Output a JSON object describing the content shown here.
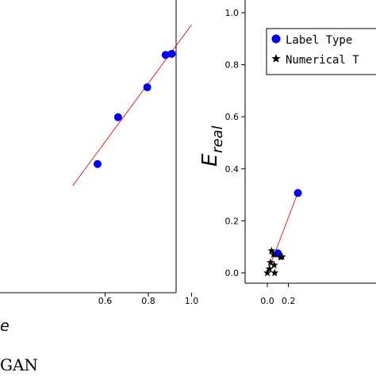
{
  "chart_data": [
    {
      "type": "scatter",
      "xlim": [
        0.3,
        1.0
      ],
      "ylim": [
        0.0,
        1.0
      ],
      "x_ticks": [
        "0.6",
        "0.8",
        "1.0"
      ],
      "x_tick_values": [
        0.6,
        0.8,
        1.0
      ],
      "xlabel_visible": "e",
      "series": [
        {
          "marker": "circle",
          "color": "#0000ee",
          "points": [
            {
              "x": 0.565,
              "y": 0.473
            },
            {
              "x": 0.66,
              "y": 0.645
            },
            {
              "x": 0.795,
              "y": 0.755
            },
            {
              "x": 0.88,
              "y": 0.874
            },
            {
              "x": 0.908,
              "y": 0.878
            }
          ]
        }
      ],
      "fit_line": {
        "color": "#d62728",
        "points": [
          {
            "x": 0.45,
            "y": 0.393
          },
          {
            "x": 1.0,
            "y": 0.985
          }
        ]
      },
      "caption_fragment": "GAN"
    },
    {
      "type": "scatter",
      "xlim": [
        -0.075,
        0.42
      ],
      "ylim": [
        -0.03,
        1.06
      ],
      "x_ticks": [
        "0.0",
        "0.2"
      ],
      "x_tick_values": [
        0.0,
        0.2
      ],
      "y_ticks": [
        "0.0",
        "0.2",
        "0.4",
        "0.6",
        "0.8",
        "1.0"
      ],
      "y_tick_values": [
        0.0,
        0.2,
        0.4,
        0.6,
        0.8,
        1.0
      ],
      "ylabel": {
        "main": "E",
        "sub": "real"
      },
      "legend": {
        "placement": "top-right",
        "entries": [
          {
            "marker": "circle",
            "label": "Label Type"
          },
          {
            "marker": "star",
            "label": "Numerical T"
          }
        ]
      },
      "series": [
        {
          "name": "Label Type",
          "marker": "circle",
          "color": "#0000ee",
          "points": [
            {
              "x": 0.1,
              "y": 0.075
            },
            {
              "x": 0.29,
              "y": 0.307
            }
          ]
        },
        {
          "name": "Numerical T",
          "marker": "star",
          "color": "#000000",
          "points": [
            {
              "x": 0.0,
              "y": 0.0
            },
            {
              "x": 0.02,
              "y": 0.015
            },
            {
              "x": 0.03,
              "y": 0.04
            },
            {
              "x": 0.04,
              "y": 0.085
            },
            {
              "x": 0.06,
              "y": 0.07
            },
            {
              "x": 0.065,
              "y": 0.03
            },
            {
              "x": 0.07,
              "y": 0.0
            },
            {
              "x": 0.125,
              "y": 0.06
            },
            {
              "x": 0.14,
              "y": 0.062
            }
          ]
        }
      ],
      "fit_line": {
        "color": "#d62728",
        "points": [
          {
            "x": 0.0,
            "y": 0.0
          },
          {
            "x": 0.3,
            "y": 0.32
          }
        ]
      }
    }
  ]
}
